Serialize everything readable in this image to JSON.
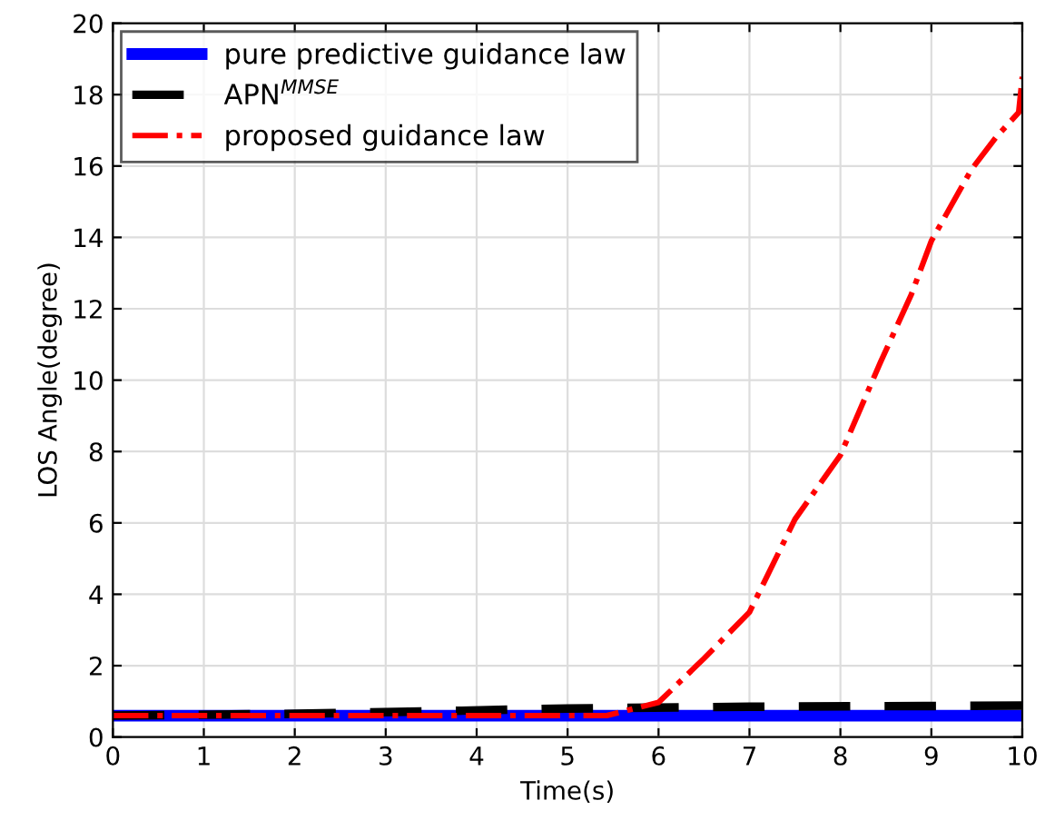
{
  "chart_data": {
    "type": "line",
    "xlabel": "Time(s)",
    "ylabel": "LOS Angle(degree)",
    "xlim": [
      0,
      10
    ],
    "ylim": [
      0,
      20
    ],
    "xticks": [
      0,
      1,
      2,
      3,
      4,
      5,
      6,
      7,
      8,
      9,
      10
    ],
    "yticks": [
      0,
      2,
      4,
      6,
      8,
      10,
      12,
      14,
      16,
      18,
      20
    ],
    "grid": true,
    "legend": "top left",
    "marker": "none",
    "series": [
      {
        "name": "pure predictive guidance law",
        "color": "#0000ff",
        "line_style": "solid",
        "x": [
          0,
          5,
          10
        ],
        "values": [
          0.6,
          0.6,
          0.6
        ]
      },
      {
        "name": "APN$^{MMSE}$",
        "color": "#000000",
        "line_style": "dashed",
        "x": [
          0,
          2,
          3.5,
          5,
          7,
          10
        ],
        "values": [
          0.6,
          0.65,
          0.72,
          0.8,
          0.85,
          0.88
        ]
      },
      {
        "name": "proposed guidance law",
        "color": "#ff0000",
        "line_style": "dashdot",
        "x": [
          0,
          3,
          5,
          5.43,
          6,
          6.5,
          7,
          7.5,
          8,
          8.44,
          8.78,
          9,
          9.44,
          9.71,
          9.96,
          10
        ],
        "values": [
          0.6,
          0.6,
          0.6,
          0.6,
          0.97,
          2.2,
          3.5,
          6.1,
          7.9,
          10.5,
          12.4,
          13.9,
          15.9,
          16.8,
          17.5,
          18.5
        ]
      }
    ]
  }
}
